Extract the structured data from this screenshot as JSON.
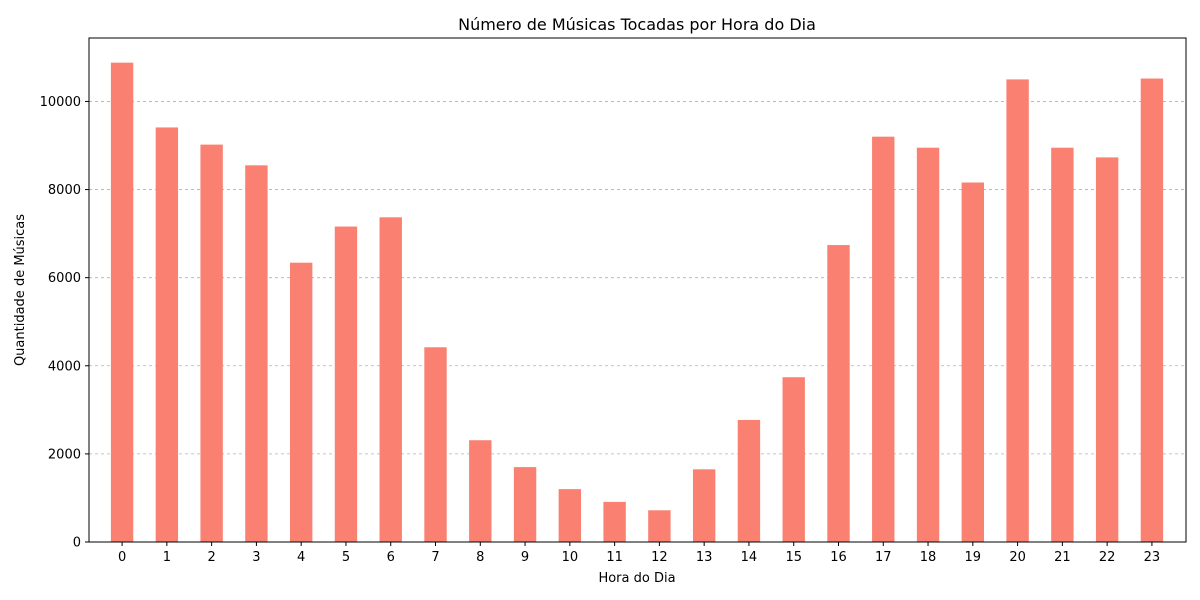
{
  "chart_data": {
    "type": "bar",
    "title": "Número de Músicas Tocadas por Hora do Dia",
    "xlabel": "Hora do Dia",
    "ylabel": "Quantidade de Músicas",
    "categories": [
      "0",
      "1",
      "2",
      "3",
      "4",
      "5",
      "6",
      "7",
      "8",
      "9",
      "10",
      "11",
      "12",
      "13",
      "14",
      "15",
      "16",
      "17",
      "18",
      "19",
      "20",
      "21",
      "22",
      "23"
    ],
    "values": [
      10880,
      9410,
      9020,
      8550,
      6340,
      7160,
      7370,
      4420,
      2310,
      1700,
      1200,
      910,
      720,
      1650,
      2770,
      3740,
      6740,
      9200,
      8950,
      8160,
      10500,
      8950,
      8730,
      10520
    ],
    "ylim": [
      0,
      11440
    ],
    "yticks": [
      0,
      2000,
      4000,
      6000,
      8000,
      10000
    ],
    "grid": "y-dashed",
    "bar_color": "#fa8072"
  }
}
